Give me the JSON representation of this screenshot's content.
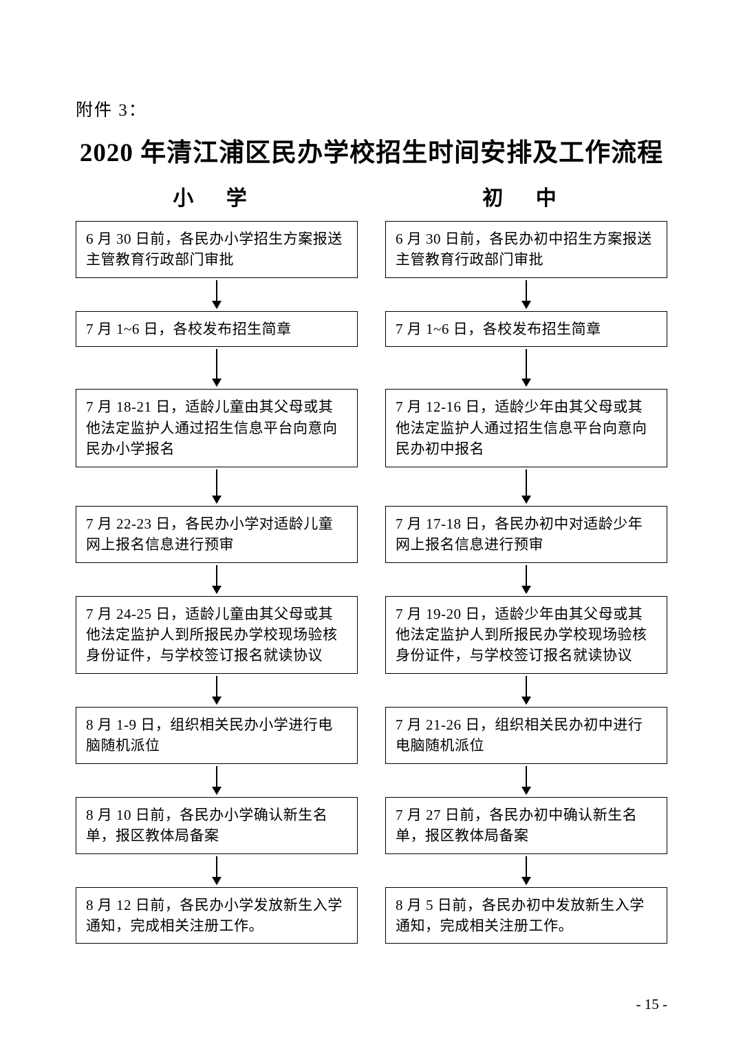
{
  "attachment_label": "附件 3：",
  "main_title": "2020 年清江浦区民办学校招生时间安排及工作流程",
  "page_number": "- 15 -",
  "flowchart": {
    "type": "flowchart",
    "columns": [
      "小 学",
      "初 中"
    ],
    "box_border_color": "#000000",
    "box_border_width": 1.5,
    "arrow_color": "#000000",
    "arrow_line_width": 2,
    "arrow_head_size": 12,
    "background_color": "#ffffff",
    "text_color": "#000000",
    "body_fontsize": 21,
    "header_fontsize": 30,
    "title_fontsize": 37,
    "label_fontsize": 25,
    "font_family": "SimSun",
    "arrow_heights": [
      42,
      55,
      50,
      42,
      42,
      42,
      42
    ],
    "left_steps": [
      "6 月 30 日前，各民办小学招生方案报送主管教育行政部门审批",
      "7 月 1~6 日，各校发布招生简章",
      "7 月 18-21 日，适龄儿童由其父母或其他法定监护人通过招生信息平台向意向民办小学报名",
      "7 月 22-23 日，各民办小学对适龄儿童网上报名信息进行预审",
      "7 月 24-25 日，适龄儿童由其父母或其他法定监护人到所报民办学校现场验核身份证件，与学校签订报名就读协议",
      "8 月 1-9 日，组织相关民办小学进行电脑随机派位",
      "8 月 10 日前，各民办小学确认新生名单，报区教体局备案",
      "8 月 12 日前，各民办小学发放新生入学通知，完成相关注册工作。"
    ],
    "right_steps": [
      "6 月 30 日前，各民办初中招生方案报送主管教育行政部门审批",
      "7 月 1~6 日，各校发布招生简章",
      "7 月 12-16 日，适龄少年由其父母或其他法定监护人通过招生信息平台向意向民办初中报名",
      "7 月 17-18 日，各民办初中对适龄少年网上报名信息进行预审",
      "7 月 19-20 日，适龄少年由其父母或其他法定监护人到所报民办学校现场验核身份证件，与学校签订报名就读协议",
      "7 月 21-26 日，组织相关民办初中进行电脑随机派位",
      "7 月 27 日前，各民办初中确认新生名单，报区教体局备案",
      "8 月 5 日前，各民办初中发放新生入学通知，完成相关注册工作。"
    ]
  }
}
